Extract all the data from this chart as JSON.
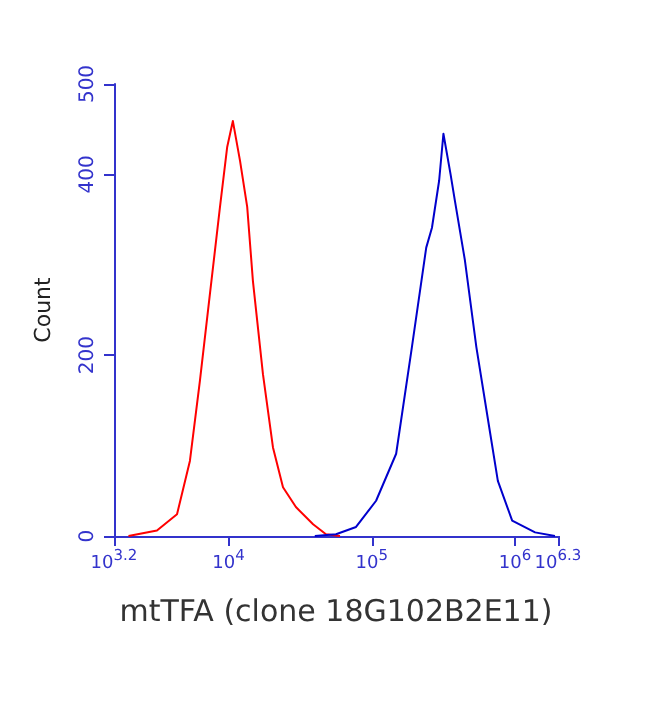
{
  "chart_data": {
    "type": "line",
    "xlabel": "mtTFA (clone 18G102B2E11)",
    "ylabel": "Count",
    "log": "x",
    "xlim": [
      1585,
      1995262
    ],
    "xticks": [
      {
        "value": 1585,
        "label": "10$^{3.2}$"
      },
      {
        "value": 10000,
        "label": "10$^{4}$"
      },
      {
        "value": 100000,
        "label": "10$^{5}$"
      },
      {
        "value": 1000000,
        "label": "10$^{6}$"
      },
      {
        "value": 1995262,
        "label": "10$^{6.3}$"
      }
    ],
    "ylim": [
      0,
      500
    ],
    "yticks": [
      0,
      200,
      400,
      500
    ],
    "grid": false,
    "marker": "none",
    "line_style": "solid",
    "series": [
      {
        "color": "#ff0000",
        "x": [
          2000,
          3162,
          4365,
          5370,
          6310,
          7413,
          8710,
          9772,
          10715,
          12023,
          13490,
          14791,
          17378,
          20417,
          23988,
          29512,
          38905,
          47863,
          60000
        ],
        "values": [
          0,
          6,
          24,
          83,
          172,
          268,
          364,
          430,
          459,
          415,
          364,
          282,
          179,
          98,
          54,
          32,
          13,
          2,
          0
        ]
      },
      {
        "color": "#0000cc",
        "x": [
          40000,
          56234,
          77625,
          107152,
          147911,
          190546,
          239883,
          263027,
          295121,
          316228,
          354813,
          380189,
          446684,
          537032,
          660693,
          758578,
          954993,
          1380384,
          1900000
        ],
        "values": [
          0,
          2,
          10,
          39,
          91,
          209,
          319,
          341,
          393,
          445,
          400,
          371,
          305,
          209,
          120,
          61,
          17,
          4,
          0
        ]
      }
    ]
  }
}
